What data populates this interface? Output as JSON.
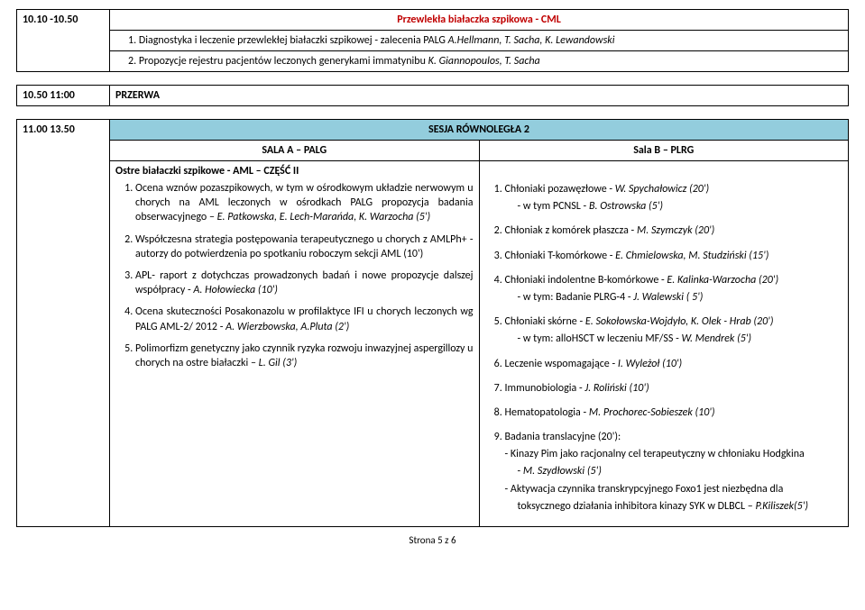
{
  "top": {
    "time1": "10.10 -10.50",
    "title": "Przewlekła białaczka szpikowa - CML",
    "items": [
      {
        "n": "1.",
        "text": "Diagnostyka i leczenie przewlekłej białaczki szpikowej  - zalecenia PALG ",
        "auth": "A.Hellmann, T. Sacha, K. Lewandowski"
      },
      {
        "n": "2.",
        "text": "Propozycje rejestru pacjentów leczonych generykami immatynibu ",
        "auth": "K. Giannopoulos, T. Sacha"
      }
    ]
  },
  "break": {
    "time": "10.50 11:00",
    "label": "PRZERWA"
  },
  "session2": {
    "time": "11.00 13.50",
    "heading": "SESJA RÓWNOLEGŁA 2",
    "left_title": "SALA A – PALG",
    "right_title": "Sala B – PLRG",
    "left_sub": "Ostre białaczki szpikowe  - AML – CZĘŚĆ II",
    "left": [
      {
        "text": "Ocena wznów pozaszpikowych, w tym w ośrodkowym układzie nerwowym u chorych na AML leczonych w ośrodkach PALG propozycja badania obserwacyjnego – ",
        "auth": "E. Patkowska, E. Lech-Marańda, K. Warzocha (5')"
      },
      {
        "text": "Współczesna strategia postępowania terapeutycznego u chorych z AMLPh+ - autorzy do potwierdzenia po spotkaniu roboczym sekcji AML (10')",
        "auth": ""
      },
      {
        "text": "APL- raport z dotychczas prowadzonych badań i nowe propozycje dalszej współpracy - ",
        "auth": "A. Hołowiecka (10')"
      },
      {
        "text": "Ocena skuteczności Posakonazolu w profilaktyce IFI u chorych leczonych wg PALG AML-2/ 2012 - ",
        "auth": "A. Wierzbowska, A.Pluta (2')"
      },
      {
        "text": "Polimorfizm genetyczny jako czynnik ryzyka rozwoju inwazyjnej aspergillozy u chorych na ostre białaczki – ",
        "auth": "L. Gil (3')"
      }
    ],
    "right": [
      {
        "text": "Chłoniaki pozawęzłowe - ",
        "auth": "W. Spychałowicz (20')",
        "sub": "- w tym PCNSL - ",
        "subauth": "B. Ostrowska  (5')"
      },
      {
        "text": "Chłoniak z komórek płaszcza - ",
        "auth": "M. Szymczyk (20')"
      },
      {
        "text": "Chłoniaki T-komórkowe - ",
        "auth": "E. Chmielowska, M. Studziński (15')"
      },
      {
        "text": "Chłoniaki indolentne B-komórkowe  - ",
        "auth": "E. Kalinka-Warzocha (20')",
        "sub": "- w tym: Badanie PLRG-4  - ",
        "subauth": "J. Walewski ( 5')"
      },
      {
        "text": "Chłoniaki skórne - ",
        "auth": "E. Sokołowska-Wojdyło, K. Olek - Hrab (20')",
        "sub": "- w tym: alloHSCT w leczeniu MF/SS  - ",
        "subauth": "W. Mendrek  (5')"
      },
      {
        "text": "Leczenie wspomagające  - ",
        "auth": "I. Wyleżoł (10')"
      },
      {
        "text": "Immunobiologia - ",
        "auth": "J. Roliński (10')"
      },
      {
        "text": "Hematopatologia - ",
        "auth": "M. Prochorec-Sobieszek (10')"
      },
      {
        "text": "Badania translacyjne (20'):",
        "auth": "",
        "trans": [
          {
            "pre": "- Kinazy Pim jako racjonalny cel terapeutyczny w chłoniaku Hodgkina",
            "sub": "- ",
            "subauth": "M. Szydłowski (5')"
          },
          {
            "pre": "- Aktywacja czynnika transkrypcyjnego Foxo1 jest niezbędna dla",
            "sub2": "toksycznego działania inhibitora kinazy SYK w DLBCL – ",
            "subauth": "P.Kiliszek(5')"
          }
        ]
      }
    ]
  },
  "footer": "Strona 5 z 6"
}
